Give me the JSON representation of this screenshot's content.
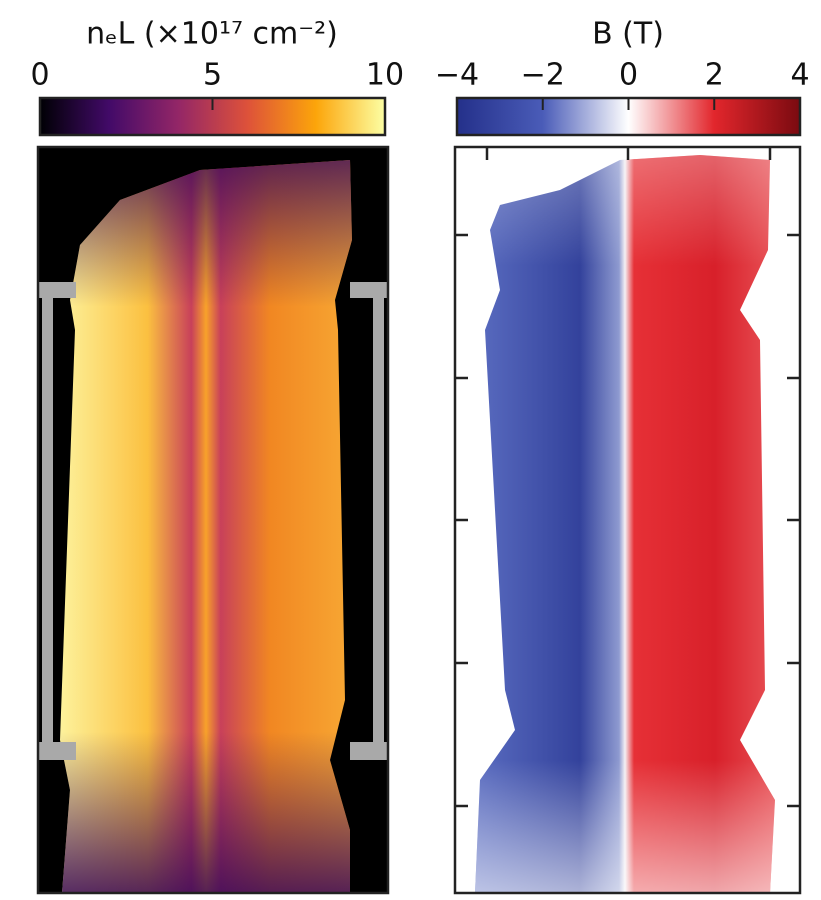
{
  "chart_data": [
    {
      "type": "colormap-image",
      "title": "nₑL (×10¹⁷ cm⁻²)",
      "clim": [
        0,
        10
      ],
      "cticks": [
        0,
        5,
        10
      ],
      "colormap": [
        "#000004",
        "#420a68",
        "#932667",
        "#dd513a",
        "#fca50a",
        "#fcffa4"
      ]
    },
    {
      "type": "colormap-image",
      "title": "B (T)",
      "clim": [
        -4,
        4
      ],
      "cticks": [
        {
          "value": -4,
          "label": "−4"
        },
        {
          "value": -2,
          "label": "−2"
        },
        0,
        2,
        4
      ],
      "colormap": [
        "#24308a",
        "#4a5cb8",
        "#ffffff",
        "#e2262c",
        "#7a0a10"
      ]
    }
  ]
}
